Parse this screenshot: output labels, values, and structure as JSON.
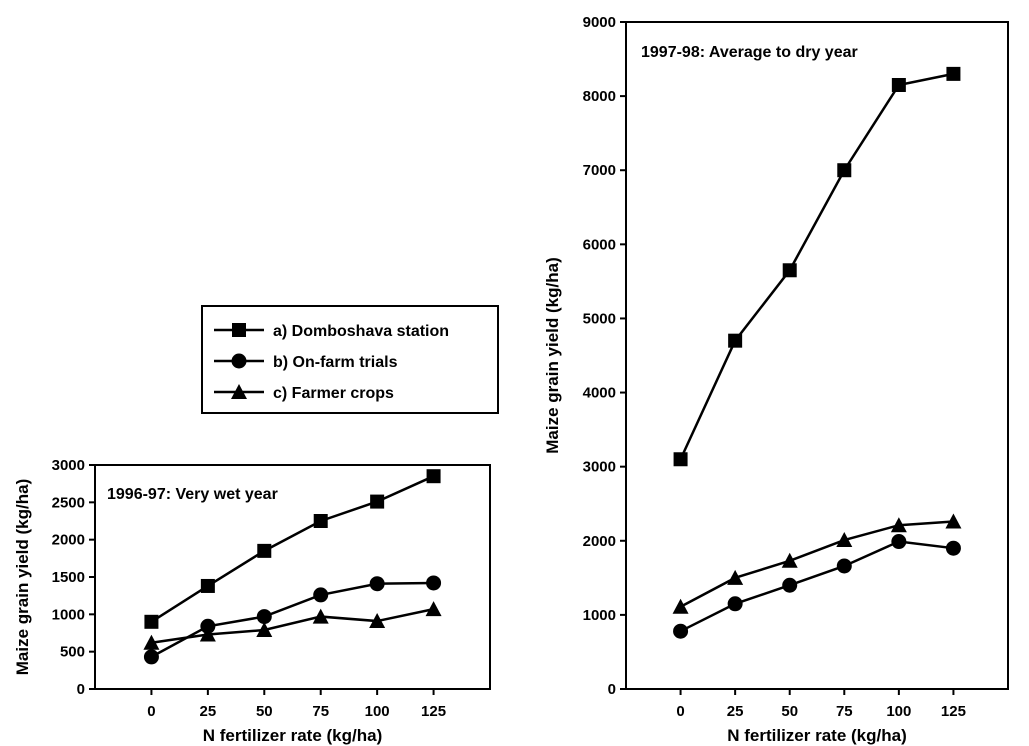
{
  "chart_data": [
    {
      "type": "line",
      "annotation": "1996-97: Very wet year",
      "xlabel": "N fertilizer rate (kg/ha)",
      "ylabel": "Maize grain yield (kg/ha)",
      "x": [
        0,
        25,
        50,
        75,
        100,
        125
      ],
      "xlim": [
        -25,
        150
      ],
      "ylim": [
        0,
        3000
      ],
      "xticks": [
        0,
        25,
        50,
        75,
        100,
        125
      ],
      "yticks": [
        0,
        500,
        1000,
        1500,
        2000,
        2500,
        3000
      ],
      "series": [
        {
          "name": "a) Domboshava station",
          "marker": "square",
          "values": [
            900,
            1380,
            1850,
            2250,
            2510,
            2850
          ]
        },
        {
          "name": "b) On-farm trials",
          "marker": "circle",
          "values": [
            430,
            840,
            970,
            1260,
            1410,
            1420
          ]
        },
        {
          "name": "c) Farmer crops",
          "marker": "triangle",
          "values": [
            620,
            730,
            790,
            970,
            910,
            1070
          ]
        }
      ]
    },
    {
      "type": "line",
      "annotation": "1997-98: Average to dry year",
      "xlabel": "N fertilizer rate (kg/ha)",
      "ylabel": "Maize grain yield (kg/ha)",
      "x": [
        0,
        25,
        50,
        75,
        100,
        125
      ],
      "xlim": [
        -25,
        150
      ],
      "ylim": [
        0,
        9000
      ],
      "xticks": [
        0,
        25,
        50,
        75,
        100,
        125
      ],
      "yticks": [
        0,
        1000,
        2000,
        3000,
        4000,
        5000,
        6000,
        7000,
        8000,
        9000
      ],
      "series": [
        {
          "name": "a) Domboshava station",
          "marker": "square",
          "values": [
            3100,
            4700,
            5650,
            7000,
            8150,
            8300
          ]
        },
        {
          "name": "b) On-farm trials",
          "marker": "circle",
          "values": [
            780,
            1150,
            1400,
            1660,
            1990,
            1900
          ]
        },
        {
          "name": "c) Farmer crops",
          "marker": "triangle",
          "values": [
            1110,
            1500,
            1730,
            2010,
            2210,
            2260
          ]
        }
      ]
    }
  ],
  "legend": {
    "placement": "upper-middle",
    "entries": [
      {
        "label": "a) Domboshava station",
        "marker": "square"
      },
      {
        "label": "b) On-farm trials",
        "marker": "circle"
      },
      {
        "label": "c) Farmer crops",
        "marker": "triangle"
      }
    ]
  }
}
